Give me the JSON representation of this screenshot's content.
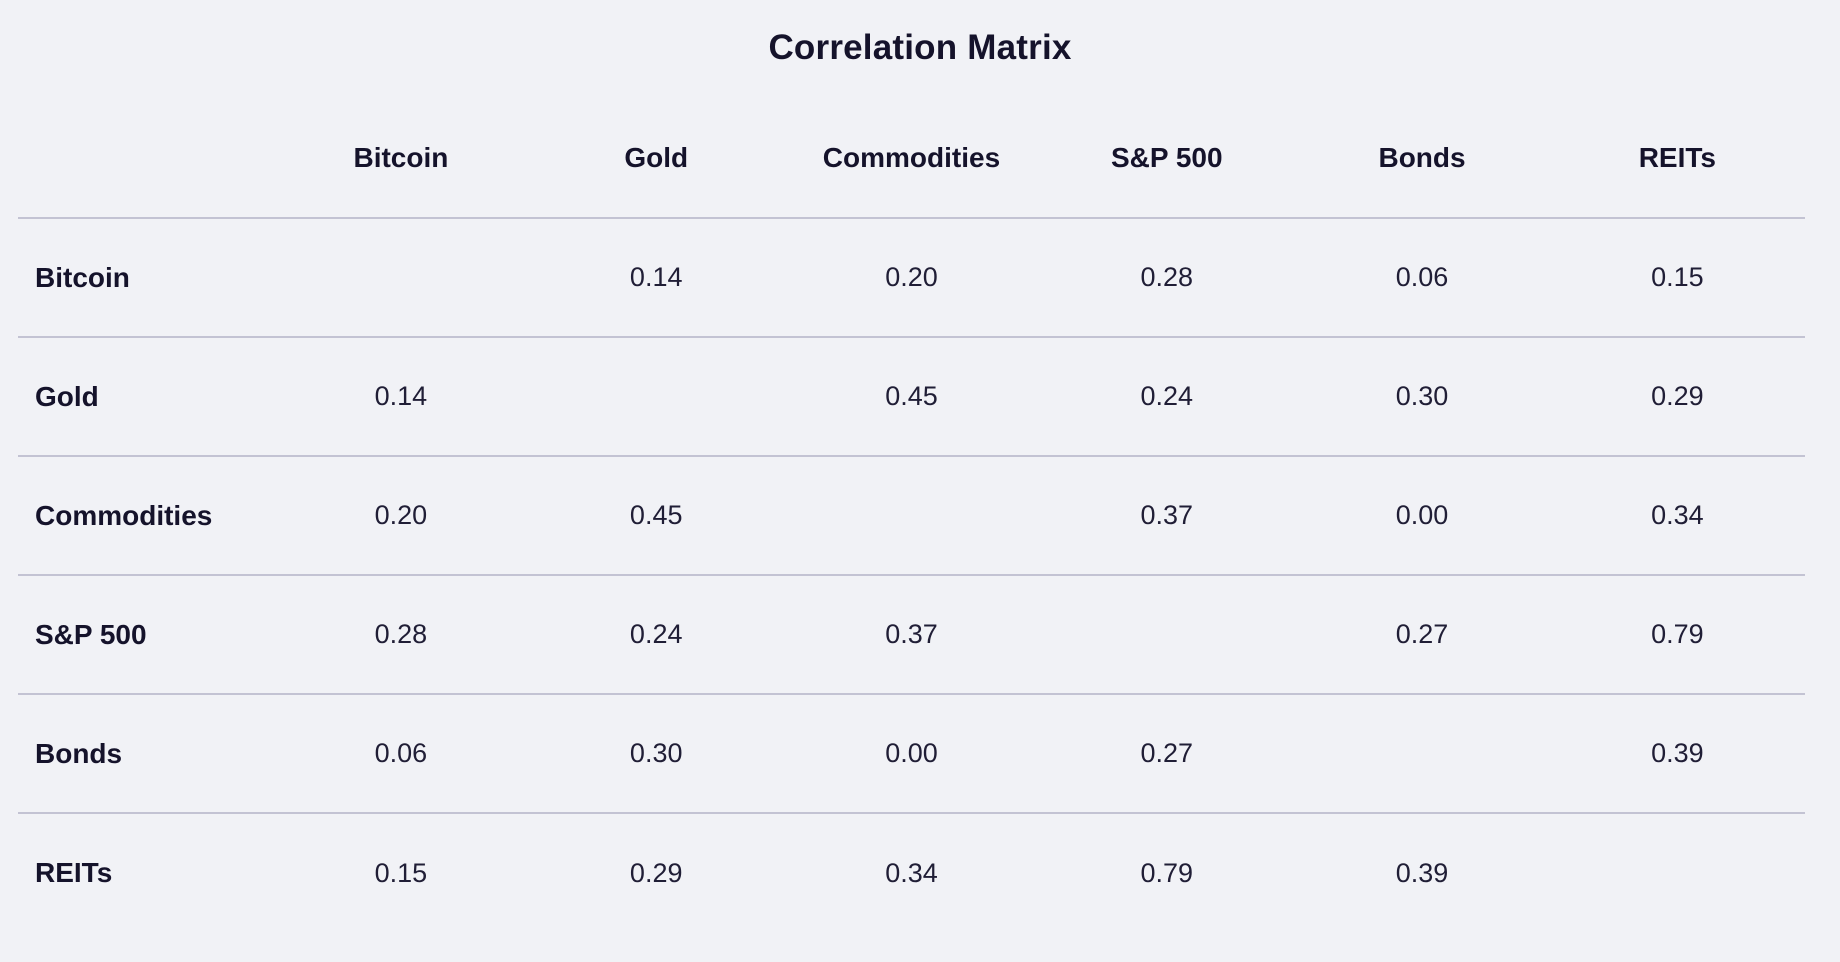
{
  "title": "Correlation Matrix",
  "table": {
    "assets": [
      "Bitcoin",
      "Gold",
      "Commodities",
      "S&P 500",
      "Bonds",
      "REITs"
    ],
    "matrix": [
      [
        "",
        "0.14",
        "0.20",
        "0.28",
        "0.06",
        "0.15"
      ],
      [
        "0.14",
        "",
        "0.45",
        "0.24",
        "0.30",
        "0.29"
      ],
      [
        "0.20",
        "0.45",
        "",
        "0.37",
        "0.00",
        "0.34"
      ],
      [
        "0.28",
        "0.24",
        "0.37",
        "",
        "0.27",
        "0.79"
      ],
      [
        "0.06",
        "0.30",
        "0.00",
        "0.27",
        "",
        "0.39"
      ],
      [
        "0.15",
        "0.29",
        "0.34",
        "0.79",
        "0.39",
        ""
      ]
    ]
  },
  "chart_data": {
    "type": "table",
    "title": "Correlation Matrix",
    "categories": [
      "Bitcoin",
      "Gold",
      "Commodities",
      "S&P 500",
      "Bonds",
      "REITs"
    ],
    "series": [
      {
        "name": "Bitcoin",
        "values": [
          null,
          0.14,
          0.2,
          0.28,
          0.06,
          0.15
        ]
      },
      {
        "name": "Gold",
        "values": [
          0.14,
          null,
          0.45,
          0.24,
          0.3,
          0.29
        ]
      },
      {
        "name": "Commodities",
        "values": [
          0.2,
          0.45,
          null,
          0.37,
          0.0,
          0.34
        ]
      },
      {
        "name": "S&P 500",
        "values": [
          0.28,
          0.24,
          0.37,
          null,
          0.27,
          0.79
        ]
      },
      {
        "name": "Bonds",
        "values": [
          0.06,
          0.3,
          0.0,
          0.27,
          null,
          0.39
        ]
      },
      {
        "name": "REITs",
        "values": [
          0.15,
          0.29,
          0.34,
          0.79,
          0.39,
          null
        ]
      }
    ],
    "layout_hints": {
      "diagonal": "blank",
      "symmetric": true,
      "grid": "horizontal-rules-only"
    }
  },
  "colors": {
    "background": "#f1f2f6",
    "text": "#15132b",
    "value_text": "#201e36",
    "rule_line": "#c3c3d3"
  }
}
